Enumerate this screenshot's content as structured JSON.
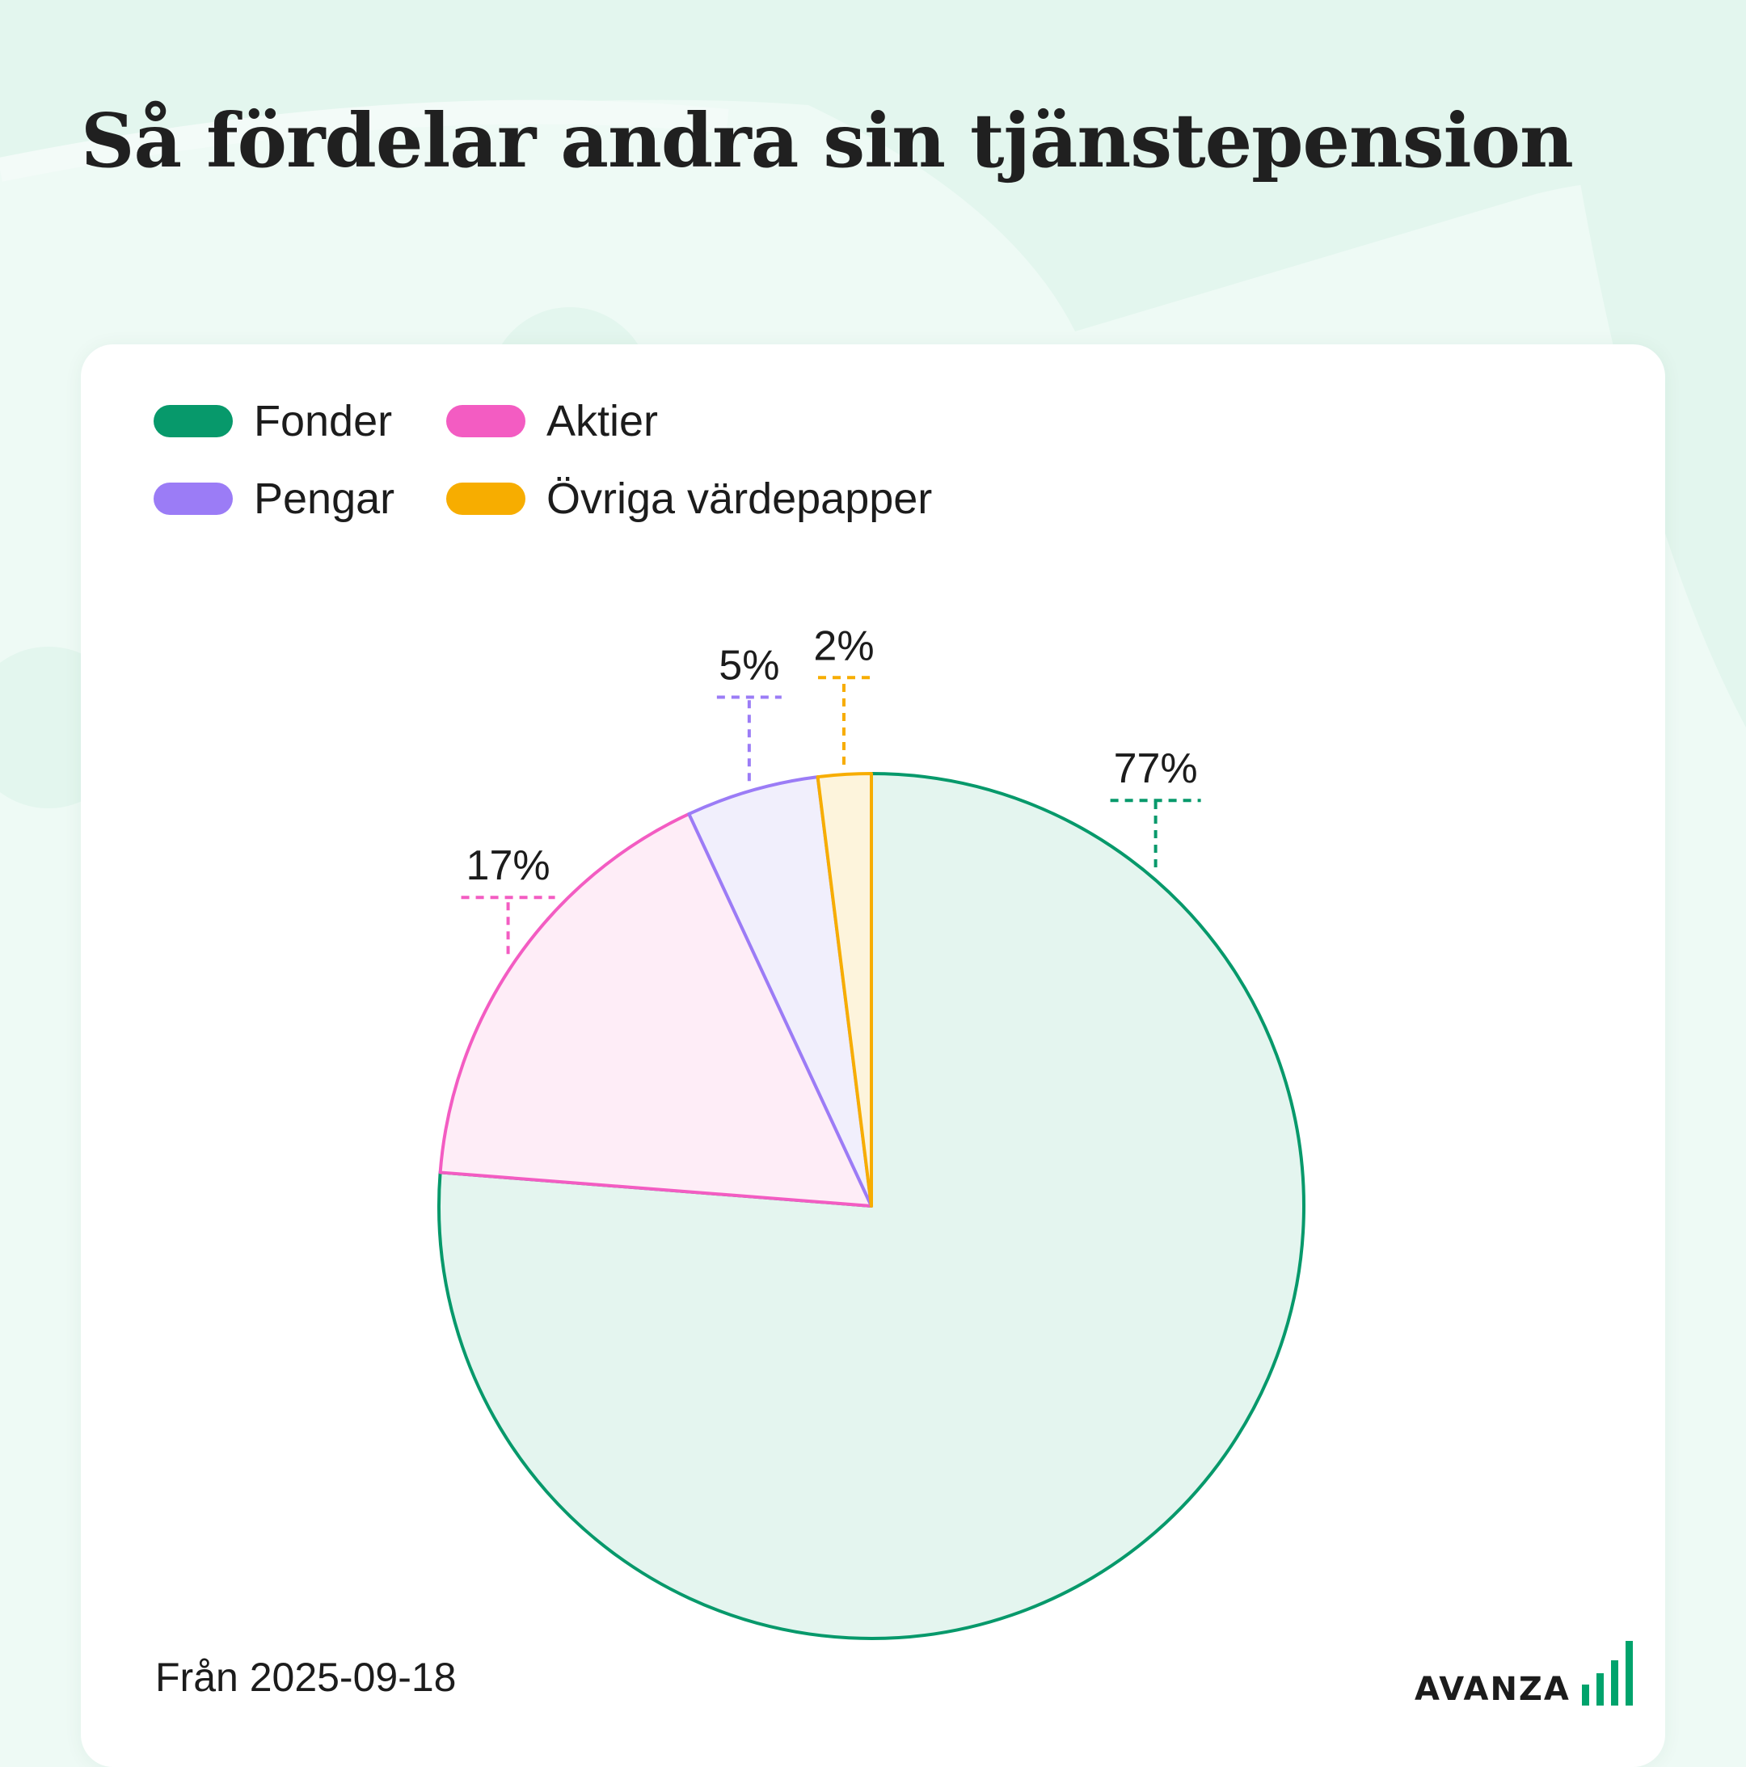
{
  "title": "Så fördelar andra sin tjänstepension",
  "footer": {
    "date_text": "Från 2025-09-18",
    "logo_text": "AVANZA"
  },
  "colors": {
    "background": "#eefaf5",
    "card": "#ffffff",
    "brand_green": "#00a36c"
  },
  "chart_data": {
    "type": "pie",
    "title": "Så fördelar andra sin tjänstepension",
    "legend_placement": "top-left",
    "slices": [
      {
        "name": "Fonder",
        "value": 77,
        "label": "77%",
        "color": "#07996b",
        "fill": "#e4f5ef"
      },
      {
        "name": "Aktier",
        "value": 17,
        "label": "17%",
        "color": "#f35cc2",
        "fill": "#feedf7"
      },
      {
        "name": "Pengar",
        "value": 5,
        "label": "5%",
        "color": "#9b7cf6",
        "fill": "#f1effc"
      },
      {
        "name": "Övriga värdepapper",
        "value": 2,
        "label": "2%",
        "color": "#f7ad00",
        "fill": "#fdf4dc"
      }
    ]
  }
}
